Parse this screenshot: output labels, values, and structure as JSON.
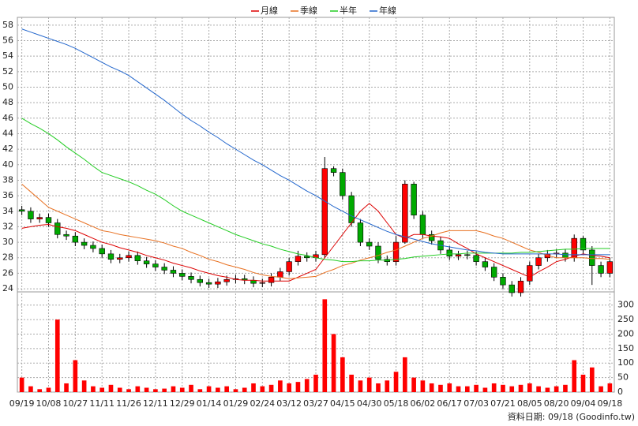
{
  "chart_data": {
    "type": "candlestick",
    "legend": [
      {
        "name": "月線",
        "color": "#dd0000"
      },
      {
        "name": "季線",
        "color": "#e87020"
      },
      {
        "name": "半年",
        "color": "#22cc22"
      },
      {
        "name": "年線",
        "color": "#2266cc"
      }
    ],
    "up_color": "#ff0000",
    "down_color": "#00aa00",
    "grid": true,
    "categories": [
      "09/19",
      null,
      null,
      "10/08",
      null,
      null,
      "10/27",
      null,
      null,
      "11/11",
      null,
      null,
      "11/26",
      null,
      null,
      "12/11",
      null,
      null,
      "12/29",
      null,
      null,
      "01/14",
      null,
      null,
      "01/29",
      null,
      null,
      "02/24",
      null,
      null,
      "03/12",
      null,
      null,
      "03/27",
      null,
      null,
      "04/15",
      null,
      null,
      "04/30",
      null,
      null,
      "05/18",
      null,
      null,
      "06/02",
      null,
      null,
      "06/17",
      null,
      null,
      "07/03",
      null,
      null,
      "07/21",
      null,
      null,
      "08/05",
      null,
      null,
      "08/20",
      null,
      null,
      "09/04",
      null,
      null,
      "09/18"
    ],
    "open": [
      34.2,
      34.0,
      33.0,
      33.2,
      32.5,
      31.0,
      30.8,
      30.0,
      29.6,
      29.2,
      28.5,
      27.8,
      28.0,
      28.3,
      27.6,
      27.2,
      26.8,
      26.4,
      26.0,
      25.6,
      25.2,
      24.8,
      24.6,
      24.9,
      25.2,
      25.3,
      25.1,
      24.7,
      24.8,
      25.5,
      26.2,
      27.5,
      28.2,
      28.0,
      28.4,
      39.5,
      39.0,
      36.0,
      32.5,
      30.0,
      29.5,
      27.8,
      27.5,
      30.0,
      37.5,
      33.5,
      31.0,
      30.2,
      29.0,
      28.2,
      28.4,
      28.3,
      27.5,
      26.8,
      25.5,
      24.5,
      23.5,
      25.0,
      27.0,
      28.0,
      28.5,
      28.6,
      28.0,
      30.5,
      29.0,
      27.0,
      26.0
    ],
    "high": [
      34.7,
      34.5,
      33.7,
      33.7,
      33.0,
      31.5,
      31.3,
      30.5,
      30.1,
      29.7,
      29.0,
      28.5,
      28.8,
      28.8,
      28.1,
      27.7,
      27.3,
      26.9,
      26.5,
      26.1,
      25.7,
      25.3,
      25.4,
      25.7,
      25.8,
      25.8,
      25.6,
      25.3,
      26.0,
      26.7,
      28.0,
      28.9,
      28.7,
      28.9,
      41.0,
      39.8,
      39.5,
      36.5,
      33.0,
      30.5,
      30.0,
      28.3,
      30.8,
      38.0,
      37.8,
      34.0,
      31.5,
      30.7,
      29.5,
      28.9,
      28.9,
      28.8,
      28.0,
      27.3,
      26.0,
      25.0,
      25.5,
      27.5,
      28.5,
      29.0,
      29.1,
      29.1,
      31.0,
      30.8,
      29.5,
      27.5,
      28.0
    ],
    "low": [
      33.5,
      32.5,
      32.5,
      32.0,
      30.5,
      30.3,
      29.5,
      29.1,
      28.7,
      28.0,
      27.3,
      27.3,
      27.5,
      27.1,
      26.7,
      26.3,
      25.9,
      25.5,
      25.1,
      24.7,
      24.3,
      24.1,
      24.1,
      24.4,
      24.7,
      24.6,
      24.2,
      24.2,
      24.3,
      25.0,
      25.7,
      27.0,
      27.5,
      27.5,
      28.0,
      38.5,
      35.5,
      32.0,
      29.5,
      29.0,
      27.3,
      27.0,
      27.0,
      29.8,
      33.0,
      30.5,
      29.7,
      28.5,
      27.7,
      27.7,
      27.8,
      27.0,
      26.3,
      25.0,
      24.0,
      23.0,
      23.0,
      24.5,
      26.5,
      27.5,
      28.0,
      27.5,
      27.5,
      28.5,
      24.5,
      25.5,
      25.5
    ],
    "close": [
      34.0,
      33.0,
      33.2,
      32.5,
      31.0,
      30.8,
      30.0,
      29.6,
      29.2,
      28.5,
      27.8,
      28.0,
      28.3,
      27.6,
      27.2,
      26.8,
      26.4,
      26.0,
      25.6,
      25.2,
      24.8,
      24.6,
      24.9,
      25.2,
      25.3,
      25.1,
      24.7,
      24.8,
      25.5,
      26.2,
      27.5,
      28.2,
      28.0,
      28.4,
      39.5,
      39.0,
      36.0,
      32.5,
      30.0,
      29.5,
      27.8,
      27.5,
      30.0,
      37.5,
      33.5,
      31.0,
      30.2,
      29.0,
      28.2,
      28.4,
      28.3,
      27.5,
      26.8,
      25.5,
      24.5,
      23.5,
      25.0,
      27.0,
      28.0,
      28.5,
      28.6,
      28.0,
      30.5,
      29.0,
      27.0,
      26.0,
      27.5
    ],
    "series": [
      {
        "name": "月線",
        "color": "#dd0000",
        "values": [
          31.8,
          32.0,
          32.2,
          32.3,
          32.0,
          31.8,
          31.5,
          31.0,
          30.5,
          30.0,
          29.7,
          29.3,
          29.0,
          28.7,
          28.3,
          28.0,
          27.7,
          27.3,
          27.0,
          26.7,
          26.3,
          26.0,
          25.7,
          25.5,
          25.2,
          25.1,
          25.1,
          25.0,
          25.0,
          25.0,
          25.0,
          25.5,
          26.0,
          26.5,
          28.0,
          29.5,
          31.0,
          32.5,
          34.0,
          35.0,
          34.0,
          32.5,
          31.0,
          30.5,
          31.0,
          31.0,
          30.8,
          30.7,
          30.5,
          29.8,
          29.2,
          28.5,
          28.0,
          27.5,
          27.0,
          26.5,
          26.0,
          25.5,
          26.2,
          26.8,
          27.5,
          27.8,
          28.2,
          28.5,
          28.3,
          28.2,
          28.0
        ]
      },
      {
        "name": "季線",
        "color": "#e87020",
        "values": [
          37.5,
          36.5,
          35.5,
          34.5,
          34.0,
          33.5,
          33.0,
          32.5,
          32.0,
          31.5,
          31.3,
          31.0,
          30.8,
          30.6,
          30.4,
          30.2,
          29.9,
          29.5,
          29.2,
          28.7,
          28.3,
          27.8,
          27.5,
          27.1,
          26.8,
          26.5,
          26.1,
          25.8,
          25.6,
          25.5,
          25.3,
          25.4,
          25.5,
          25.6,
          26.1,
          26.5,
          27.0,
          27.3,
          27.7,
          28.0,
          28.3,
          28.7,
          29.0,
          29.5,
          30.0,
          30.5,
          30.8,
          31.2,
          31.5,
          31.5,
          31.5,
          31.5,
          31.2,
          30.8,
          30.5,
          30.0,
          29.5,
          29.0,
          28.7,
          28.3,
          28.0,
          28.0,
          28.0,
          28.0,
          27.9,
          27.9,
          27.8
        ]
      },
      {
        "name": "半年",
        "color": "#22cc22",
        "values": [
          46.0,
          45.3,
          44.7,
          44.0,
          43.2,
          42.3,
          41.5,
          40.7,
          39.8,
          39.0,
          38.6,
          38.2,
          37.8,
          37.3,
          36.7,
          36.2,
          35.5,
          34.7,
          34.0,
          33.5,
          33.0,
          32.5,
          32.0,
          31.5,
          31.0,
          30.6,
          30.2,
          29.8,
          29.5,
          29.1,
          28.8,
          28.5,
          28.3,
          28.0,
          27.8,
          27.7,
          27.5,
          27.5,
          27.6,
          27.6,
          27.7,
          27.7,
          27.8,
          27.9,
          28.1,
          28.2,
          28.3,
          28.4,
          28.5,
          28.5,
          28.6,
          28.6,
          28.6,
          28.6,
          28.6,
          28.6,
          28.7,
          28.7,
          28.8,
          28.9,
          29.0,
          29.1,
          29.1,
          29.2,
          29.2,
          29.2,
          29.2
        ]
      },
      {
        "name": "年線",
        "color": "#2266cc",
        "values": [
          57.5,
          57.1,
          56.7,
          56.3,
          55.9,
          55.5,
          55.0,
          54.4,
          53.8,
          53.2,
          52.6,
          52.1,
          51.5,
          50.7,
          49.9,
          49.1,
          48.3,
          47.4,
          46.5,
          45.7,
          45.0,
          44.2,
          43.5,
          42.7,
          42.0,
          41.3,
          40.6,
          40.0,
          39.3,
          38.6,
          38.0,
          37.3,
          36.6,
          36.0,
          35.3,
          34.6,
          34.0,
          33.4,
          32.9,
          32.4,
          31.9,
          31.4,
          31.0,
          30.7,
          30.4,
          30.1,
          29.8,
          29.6,
          29.4,
          29.2,
          29.0,
          28.9,
          28.7,
          28.6,
          28.5,
          28.5,
          28.5,
          28.5,
          28.5,
          28.5,
          28.5,
          28.4,
          28.4,
          28.4,
          28.4,
          28.4,
          28.4
        ]
      }
    ],
    "ylim": [
      23.6,
      59
    ],
    "yticks": [
      24,
      26,
      28,
      30,
      32,
      34,
      36,
      38,
      40,
      42,
      44,
      46,
      48,
      50,
      52,
      54,
      56,
      58
    ],
    "volume": {
      "color": "#ff0000",
      "values": [
        50,
        20,
        10,
        15,
        250,
        30,
        110,
        40,
        20,
        15,
        25,
        15,
        10,
        20,
        15,
        10,
        12,
        20,
        15,
        25,
        10,
        20,
        15,
        20,
        10,
        15,
        30,
        20,
        25,
        40,
        30,
        35,
        45,
        60,
        320,
        200,
        120,
        60,
        40,
        50,
        30,
        40,
        70,
        120,
        50,
        40,
        30,
        25,
        30,
        20,
        20,
        25,
        15,
        30,
        25,
        20,
        25,
        30,
        20,
        15,
        20,
        25,
        110,
        60,
        85,
        20,
        30
      ],
      "ylim": [
        0,
        340
      ],
      "yticks": [
        0,
        50,
        100,
        150,
        200,
        250,
        300
      ]
    },
    "note": "資料日期: 09/18 (Goodinfo.tw)"
  }
}
